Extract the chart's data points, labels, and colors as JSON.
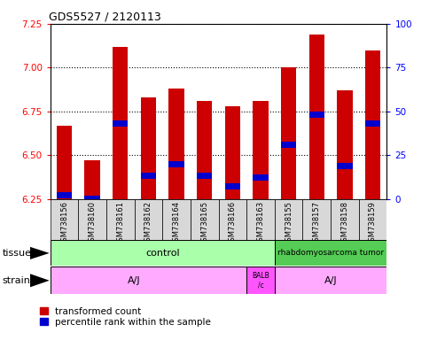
{
  "title": "GDS5527 / 2120113",
  "samples": [
    "GSM738156",
    "GSM738160",
    "GSM738161",
    "GSM738162",
    "GSM738164",
    "GSM738165",
    "GSM738166",
    "GSM738163",
    "GSM738155",
    "GSM738157",
    "GSM738158",
    "GSM738159"
  ],
  "bar_values": [
    6.67,
    6.47,
    7.12,
    6.83,
    6.88,
    6.81,
    6.78,
    6.81,
    7.0,
    7.19,
    6.87,
    7.1
  ],
  "blue_values": [
    6.27,
    6.25,
    6.68,
    6.38,
    6.45,
    6.38,
    6.32,
    6.37,
    6.56,
    6.73,
    6.44,
    6.68
  ],
  "ymin": 6.25,
  "ymax": 7.25,
  "y2min": 0,
  "y2max": 100,
  "yticks": [
    6.25,
    6.5,
    6.75,
    7.0,
    7.25
  ],
  "y2ticks": [
    0,
    25,
    50,
    75,
    100
  ],
  "bar_color": "#cc0000",
  "blue_color": "#0000cc",
  "bar_width": 0.55,
  "ctrl_color": "#aaffaa",
  "rhabdo_color": "#55cc55",
  "strain_aj_color": "#ffaaff",
  "strain_balb_color": "#ff55ff",
  "legend_red": "transformed count",
  "legend_blue": "percentile rank within the sample",
  "tissue_label": "tissue",
  "strain_label": "strain",
  "label_bg": "#d8d8d8"
}
